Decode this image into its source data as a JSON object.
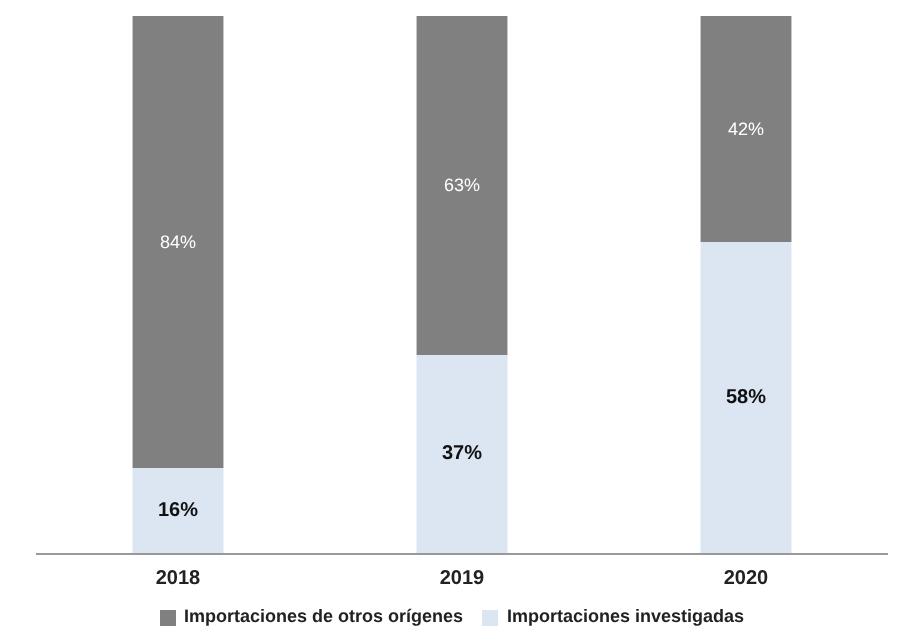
{
  "chart_data": {
    "type": "bar",
    "stacked": true,
    "categories": [
      "2018",
      "2019",
      "2020"
    ],
    "series": [
      {
        "name": "Importaciones investigadas",
        "color": "#dce6f2",
        "values": [
          16,
          37,
          58
        ],
        "value_labels": [
          "16%",
          "37%",
          "58%"
        ]
      },
      {
        "name": "Importaciones de otros orígenes",
        "color": "#808080",
        "values": [
          84,
          63,
          42
        ],
        "value_labels": [
          "84%",
          "63%",
          "42%"
        ]
      }
    ],
    "legend": "bottom"
  }
}
